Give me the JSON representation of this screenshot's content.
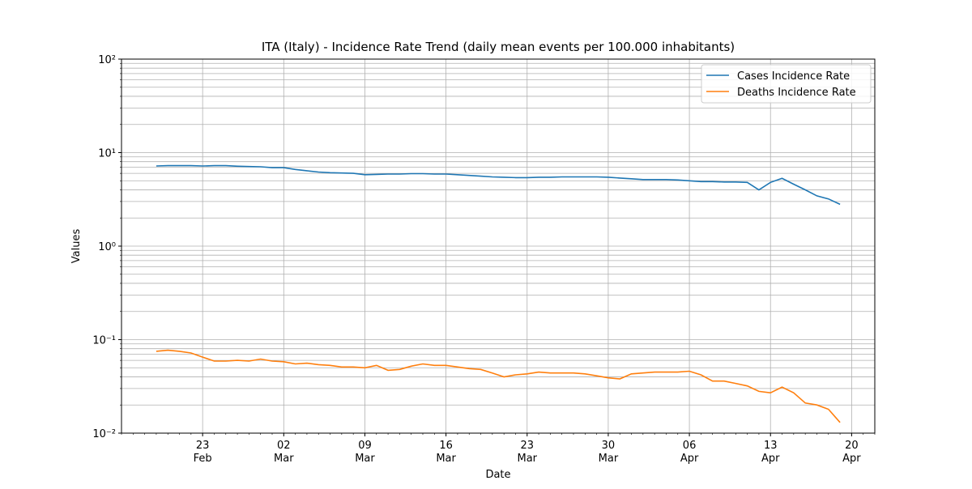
{
  "chart_data": {
    "type": "line",
    "title": "ITA (Italy) - Incidence Rate Trend (daily mean events per 100.000 inhabitants)",
    "xlabel": "Date",
    "ylabel": "Values",
    "x": [
      "19 Feb",
      "20 Feb",
      "21 Feb",
      "22 Feb",
      "23 Feb",
      "24 Feb",
      "25 Feb",
      "26 Feb",
      "27 Feb",
      "28 Feb",
      "1 Mar",
      "2 Mar",
      "3 Mar",
      "4 Mar",
      "5 Mar",
      "6 Mar",
      "7 Mar",
      "8 Mar",
      "9 Mar",
      "10 Mar",
      "11 Mar",
      "12 Mar",
      "13 Mar",
      "14 Mar",
      "15 Mar",
      "16 Mar",
      "17 Mar",
      "18 Mar",
      "19 Mar",
      "20 Mar",
      "21 Mar",
      "22 Mar",
      "23 Mar",
      "24 Mar",
      "25 Mar",
      "26 Mar",
      "27 Mar",
      "28 Mar",
      "29 Mar",
      "30 Mar",
      "31 Mar",
      "1 Apr",
      "2 Apr",
      "3 Apr",
      "4 Apr",
      "5 Apr",
      "6 Apr",
      "7 Apr",
      "8 Apr",
      "9 Apr",
      "10 Apr",
      "11 Apr",
      "12 Apr",
      "13 Apr",
      "14 Apr",
      "15 Apr",
      "16 Apr",
      "17 Apr",
      "18 Apr",
      "19 Apr"
    ],
    "series": [
      {
        "name": "Cases Incidence Rate",
        "color": "#1f77b4",
        "values": [
          7.2,
          7.25,
          7.25,
          7.25,
          7.2,
          7.25,
          7.25,
          7.15,
          7.1,
          7.05,
          6.9,
          6.9,
          6.6,
          6.4,
          6.2,
          6.1,
          6.05,
          6.0,
          5.8,
          5.85,
          5.9,
          5.9,
          5.95,
          5.95,
          5.9,
          5.9,
          5.8,
          5.7,
          5.6,
          5.5,
          5.45,
          5.4,
          5.4,
          5.45,
          5.45,
          5.5,
          5.5,
          5.5,
          5.5,
          5.45,
          5.35,
          5.25,
          5.15,
          5.15,
          5.15,
          5.1,
          5.0,
          4.9,
          4.9,
          4.85,
          4.85,
          4.8,
          4.0,
          4.8,
          5.3,
          4.6,
          4.0,
          3.45,
          3.2,
          2.8
        ]
      },
      {
        "name": "Deaths Incidence Rate",
        "color": "#ff7f0e",
        "values": [
          0.075,
          0.077,
          0.075,
          0.072,
          0.065,
          0.059,
          0.059,
          0.06,
          0.059,
          0.062,
          0.059,
          0.058,
          0.055,
          0.056,
          0.054,
          0.053,
          0.051,
          0.051,
          0.05,
          0.053,
          0.047,
          0.048,
          0.052,
          0.055,
          0.053,
          0.053,
          0.051,
          0.049,
          0.048,
          0.044,
          0.04,
          0.042,
          0.043,
          0.045,
          0.044,
          0.044,
          0.044,
          0.043,
          0.041,
          0.039,
          0.038,
          0.043,
          0.044,
          0.045,
          0.045,
          0.045,
          0.046,
          0.042,
          0.036,
          0.036,
          0.034,
          0.032,
          0.028,
          0.027,
          0.031,
          0.027,
          0.021,
          0.02,
          0.018,
          0.013
        ]
      }
    ],
    "xlim": [
      "16 Feb",
      "22 Apr"
    ],
    "xticks": [
      {
        "value": "23 Feb",
        "label": "23\nFeb"
      },
      {
        "value": "2 Mar",
        "label": "02\nMar"
      },
      {
        "value": "9 Mar",
        "label": "09\nMar"
      },
      {
        "value": "16 Mar",
        "label": "16\nMar"
      },
      {
        "value": "23 Mar",
        "label": "23\nMar"
      },
      {
        "value": "30 Mar",
        "label": "30\nMar"
      },
      {
        "value": "6 Apr",
        "label": "06\nApr"
      },
      {
        "value": "13 Apr",
        "label": "13\nApr"
      },
      {
        "value": "20 Apr",
        "label": "20\nApr"
      }
    ],
    "ylim": [
      0.01,
      100
    ],
    "yticks": [
      {
        "value": 0.01,
        "label": "10⁻²"
      },
      {
        "value": 0.1,
        "label": "10⁻¹"
      },
      {
        "value": 1,
        "label": "10⁰"
      },
      {
        "value": 10,
        "label": "10¹"
      },
      {
        "value": 100,
        "label": "10²"
      }
    ],
    "log_y": true,
    "grid": true,
    "legend": "upper right"
  }
}
